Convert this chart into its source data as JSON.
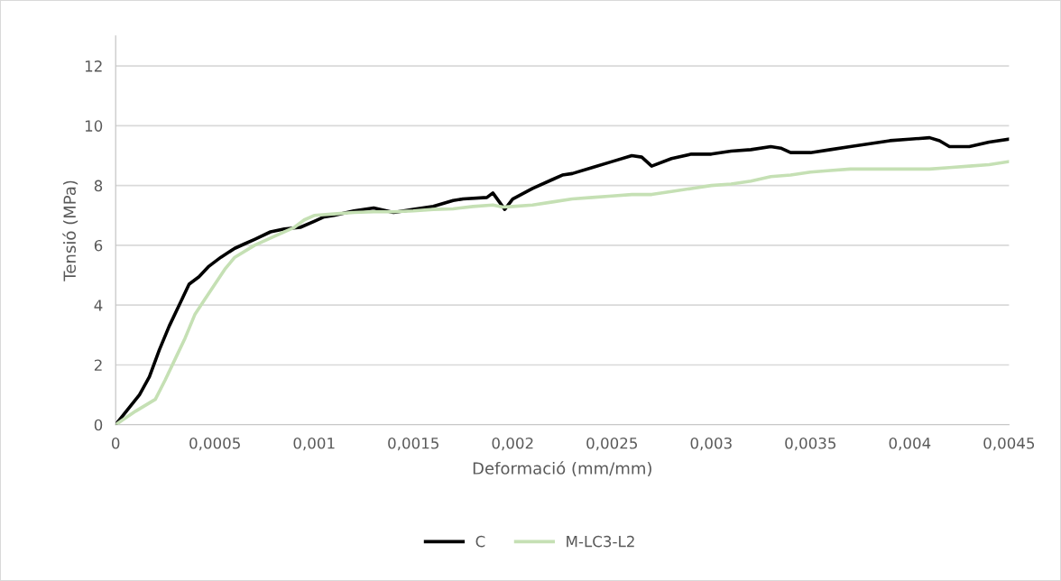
{
  "chart_data": {
    "type": "line",
    "xlabel": "Deformació (mm/mm)",
    "ylabel": "Tensió (MPa)",
    "xlim": [
      0,
      0.0045
    ],
    "ylim": [
      0,
      13
    ],
    "xticks": [
      0,
      {
        "value": 0.0005,
        "label": "0,0005"
      },
      {
        "value": 0.001,
        "label": "0,001"
      },
      {
        "value": 0.0015,
        "label": "0,0015"
      },
      {
        "value": 0.002,
        "label": "0,002"
      },
      {
        "value": 0.0025,
        "label": "0,0025"
      },
      {
        "value": 0.003,
        "label": "0,003"
      },
      {
        "value": 0.0035,
        "label": "0,0035"
      },
      {
        "value": 0.004,
        "label": "0,004"
      },
      {
        "value": 0.0045,
        "label": "0,0045"
      }
    ],
    "yticks": [
      0,
      2,
      4,
      6,
      8,
      10,
      12
    ],
    "grid": "y",
    "legend": "bottom",
    "marker": "none",
    "line_style": "solid",
    "series": [
      {
        "name": "C",
        "color": "#000000",
        "x": [
          0,
          6e-05,
          0.00012,
          0.00017,
          0.00022,
          0.00027,
          0.00032,
          0.00037,
          0.00042,
          0.00047,
          0.00053,
          0.0006,
          0.00065,
          0.0007,
          0.00078,
          0.00085,
          0.00093,
          0.001,
          0.00105,
          0.0011,
          0.0012,
          0.0013,
          0.0014,
          0.0015,
          0.0016,
          0.0017,
          0.00175,
          0.00187,
          0.0019,
          0.00196,
          0.002,
          0.0021,
          0.0022,
          0.00225,
          0.0023,
          0.0024,
          0.0025,
          0.0026,
          0.00265,
          0.0027,
          0.0028,
          0.0029,
          0.003,
          0.0031,
          0.0032,
          0.0033,
          0.00335,
          0.0034,
          0.0035,
          0.0036,
          0.0037,
          0.0038,
          0.0039,
          0.004,
          0.0041,
          0.00415,
          0.0042,
          0.0043,
          0.0044,
          0.0045
        ],
        "values": [
          0,
          0.5,
          1.0,
          1.6,
          2.5,
          3.3,
          4.0,
          4.7,
          4.95,
          5.3,
          5.6,
          5.9,
          6.05,
          6.2,
          6.45,
          6.55,
          6.6,
          6.8,
          6.95,
          7.0,
          7.15,
          7.25,
          7.1,
          7.2,
          7.3,
          7.5,
          7.55,
          7.6,
          7.75,
          7.2,
          7.55,
          7.9,
          8.2,
          8.35,
          8.4,
          8.6,
          8.8,
          9.0,
          8.95,
          8.65,
          8.9,
          9.05,
          9.05,
          9.15,
          9.2,
          9.3,
          9.25,
          9.1,
          9.1,
          9.2,
          9.3,
          9.4,
          9.5,
          9.55,
          9.6,
          9.5,
          9.3,
          9.3,
          9.45,
          9.55
        ]
      },
      {
        "name": "M-LC3-L2",
        "color": "#c5e0b4",
        "x": [
          0,
          0.0001,
          0.0002,
          0.00025,
          0.0003,
          0.00035,
          0.0004,
          0.00045,
          0.0005,
          0.00055,
          0.0006,
          0.0007,
          0.0008,
          0.0009,
          0.00095,
          0.001,
          0.0011,
          0.0012,
          0.0013,
          0.0014,
          0.0015,
          0.0016,
          0.0017,
          0.0018,
          0.0019,
          0.00195,
          0.002,
          0.0021,
          0.0022,
          0.0023,
          0.0024,
          0.0025,
          0.0026,
          0.0027,
          0.0028,
          0.0029,
          0.003,
          0.0031,
          0.0032,
          0.0033,
          0.0034,
          0.0035,
          0.0036,
          0.0037,
          0.0038,
          0.0039,
          0.0041,
          0.0042,
          0.0043,
          0.0044,
          0.0045
        ],
        "values": [
          0,
          0.45,
          0.85,
          1.5,
          2.2,
          2.9,
          3.7,
          4.2,
          4.7,
          5.2,
          5.6,
          6.0,
          6.3,
          6.6,
          6.85,
          7.0,
          7.05,
          7.1,
          7.12,
          7.12,
          7.15,
          7.2,
          7.22,
          7.3,
          7.35,
          7.28,
          7.3,
          7.35,
          7.45,
          7.55,
          7.6,
          7.65,
          7.7,
          7.7,
          7.8,
          7.9,
          8.0,
          8.05,
          8.15,
          8.3,
          8.35,
          8.45,
          8.5,
          8.55,
          8.55,
          8.55,
          8.55,
          8.6,
          8.65,
          8.7,
          8.8
        ]
      }
    ]
  }
}
